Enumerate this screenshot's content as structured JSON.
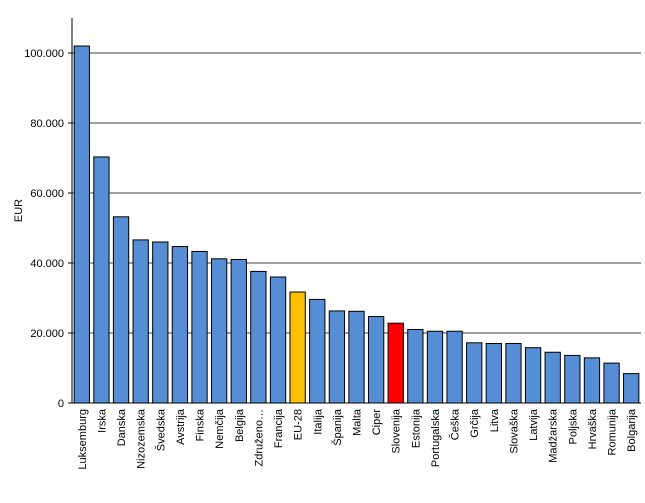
{
  "chart_data": {
    "type": "bar",
    "title": "",
    "xlabel": "",
    "ylabel": "EUR",
    "ylim": [
      0,
      110000
    ],
    "yticks": [
      0,
      20000,
      40000,
      60000,
      80000,
      100000
    ],
    "ytick_labels": [
      "0",
      "20.000",
      "40.000",
      "60.000",
      "80.000",
      "100.000"
    ],
    "grid": "horizontal",
    "legend": "none",
    "categories": [
      "Luksemburg",
      "Irska",
      "Danska",
      "Nizozemska",
      "Švedska",
      "Avstrija",
      "Finska",
      "Nemčija",
      "Belgija",
      "Združeno…",
      "Francija",
      "EU-28",
      "Italija",
      "Španija",
      "Malta",
      "Ciper",
      "Slovenija",
      "Estonija",
      "Portugalska",
      "Češka",
      "Grčija",
      "Litva",
      "Slovaška",
      "Latvija",
      "Madžarska",
      "Poljska",
      "Hrvaška",
      "Romunija",
      "Bolgarija"
    ],
    "values": [
      102000,
      70300,
      53200,
      46600,
      46000,
      44700,
      43300,
      41200,
      41000,
      37600,
      36000,
      31700,
      29600,
      26300,
      26200,
      24700,
      22800,
      21000,
      20500,
      20500,
      17200,
      17000,
      17000,
      15800,
      14500,
      13600,
      12900,
      11400,
      8400
    ],
    "bar_colors": {
      "default": "#558ed5",
      "EU-28": "#ffc000",
      "Slovenija": "#ff0000"
    }
  }
}
